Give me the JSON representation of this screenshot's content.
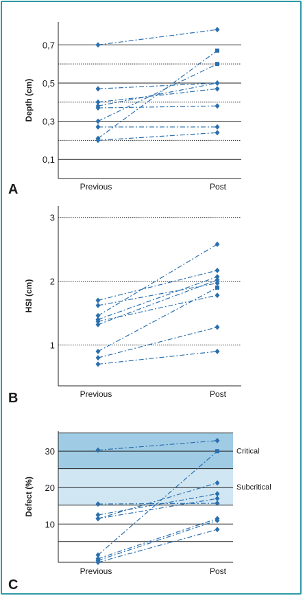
{
  "colors": {
    "frame": "#2e9aa5",
    "series": "#2a6fae",
    "critical_band": "#9fcbe5",
    "subcritical_band": "#d0e6f3"
  },
  "chart_data": [
    {
      "panel": "A",
      "type": "line",
      "ylabel": "Depth (cm)",
      "xlabel": "",
      "categories": [
        "Previous",
        "Post"
      ],
      "ylim": [
        0,
        0.82
      ],
      "yticks": [
        "0,1",
        "0,3",
        "0,5",
        "0,7"
      ],
      "ytick_values": [
        0.1,
        0.3,
        0.5,
        0.7
      ],
      "grid_values": [
        0.1,
        0.2,
        0.3,
        0.4,
        0.5,
        0.6,
        0.7
      ],
      "series": [
        {
          "values": [
            0.7,
            0.78
          ],
          "marker": "diamond"
        },
        {
          "values": [
            0.47,
            0.5
          ],
          "marker": "diamond"
        },
        {
          "values": [
            0.4,
            0.47
          ],
          "marker": "diamond"
        },
        {
          "values": [
            0.38,
            0.5
          ],
          "marker": "diamond"
        },
        {
          "values": [
            0.37,
            0.38
          ],
          "marker": "diamond"
        },
        {
          "values": [
            0.3,
            0.6
          ],
          "marker": "square"
        },
        {
          "values": [
            0.27,
            0.27
          ],
          "marker": "diamond"
        },
        {
          "values": [
            0.21,
            0.67
          ],
          "marker": "square"
        },
        {
          "values": [
            0.2,
            0.24
          ],
          "marker": "diamond"
        }
      ]
    },
    {
      "panel": "B",
      "type": "line",
      "ylabel": "HSI (cm)",
      "xlabel": "",
      "categories": [
        "Previous",
        "Post"
      ],
      "ylim": [
        0.36,
        3.18
      ],
      "yticks": [
        "1",
        "2",
        "3"
      ],
      "ytick_values": [
        1,
        2,
        3
      ],
      "grid_values": [
        1,
        2,
        3
      ],
      "series": [
        {
          "values": [
            1.7,
            2.17
          ],
          "marker": "diamond"
        },
        {
          "values": [
            1.62,
            1.97
          ],
          "marker": "diamond"
        },
        {
          "values": [
            1.46,
            2.58
          ],
          "marker": "diamond"
        },
        {
          "values": [
            1.4,
            2.07
          ],
          "marker": "diamond"
        },
        {
          "values": [
            1.37,
            1.78
          ],
          "marker": "diamond"
        },
        {
          "values": [
            1.32,
            2.02
          ],
          "marker": "diamond"
        },
        {
          "values": [
            0.9,
            1.9
          ],
          "marker": "square"
        },
        {
          "values": [
            0.8,
            1.28
          ],
          "marker": "diamond"
        },
        {
          "values": [
            0.7,
            0.9
          ],
          "marker": "diamond"
        }
      ]
    },
    {
      "panel": "C",
      "type": "line",
      "ylabel": "Defect (%)",
      "xlabel": "",
      "categories": [
        "Previous",
        "Post"
      ],
      "ylim": [
        0,
        36
      ],
      "yticks": [
        "10",
        "20",
        "30"
      ],
      "ytick_values": [
        10.5,
        20.5,
        30.5
      ],
      "grid_values": [
        5.7,
        10.5,
        15.7,
        20.5,
        25.7,
        30.5,
        35.5
      ],
      "bands": [
        {
          "label": "Critical",
          "from": 25.7,
          "to": 35.5
        },
        {
          "label": "Subcritical",
          "from": 15.7,
          "to": 25.7
        }
      ],
      "series": [
        {
          "values": [
            30.8,
            33.4
          ],
          "marker": "diamond"
        },
        {
          "values": [
            16.0,
            16.2
          ],
          "marker": "diamond"
        },
        {
          "values": [
            13.0,
            18.8
          ],
          "marker": "diamond"
        },
        {
          "values": [
            12.0,
            21.8
          ],
          "marker": "diamond"
        },
        {
          "values": [
            12.0,
            17.5
          ],
          "marker": "diamond"
        },
        {
          "values": [
            2.0,
            30.5
          ],
          "marker": "square"
        },
        {
          "values": [
            1.0,
            12.0
          ],
          "marker": "diamond"
        },
        {
          "values": [
            0.5,
            11.5
          ],
          "marker": "diamond"
        },
        {
          "values": [
            0.0,
            9.0
          ],
          "marker": "diamond"
        }
      ]
    }
  ]
}
